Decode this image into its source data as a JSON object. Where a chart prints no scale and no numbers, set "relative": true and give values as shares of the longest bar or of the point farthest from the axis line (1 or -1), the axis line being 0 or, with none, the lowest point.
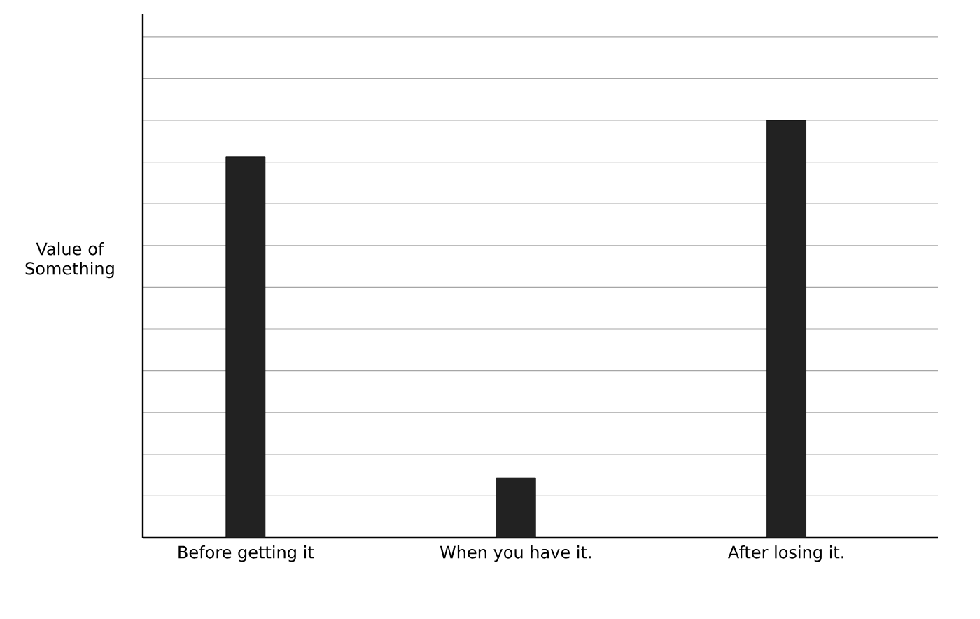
{
  "chart_data": {
    "type": "bar",
    "ylabel": "Value of Something",
    "categories": [
      "Before getting it",
      "When you have it.",
      "After losing it."
    ],
    "values": [
      0.913,
      0.144,
      1
    ],
    "color": "#222222",
    "relative": true,
    "grid": "y"
  }
}
